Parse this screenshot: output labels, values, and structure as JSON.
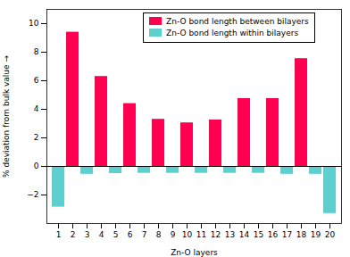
{
  "chart_data": {
    "type": "bar",
    "categories": [
      "1",
      "2",
      "3",
      "4",
      "5",
      "6",
      "7",
      "8",
      "9",
      "10",
      "11",
      "12",
      "13",
      "14",
      "15",
      "16",
      "17",
      "18",
      "19",
      "20"
    ],
    "series": [
      {
        "name": "Zn-O bond length between bilayers",
        "color": "#FF0050",
        "values": [
          null,
          9.4,
          null,
          6.3,
          null,
          4.4,
          null,
          3.3,
          null,
          3.05,
          null,
          3.25,
          null,
          4.75,
          null,
          4.75,
          null,
          7.55,
          null,
          null
        ]
      },
      {
        "name": "Zn-O bond length within bilayers",
        "color": "#5ECECE",
        "values": [
          -2.85,
          null,
          -0.55,
          null,
          -0.5,
          null,
          -0.48,
          null,
          -0.48,
          null,
          -0.48,
          null,
          -0.48,
          null,
          -0.48,
          null,
          -0.55,
          null,
          -0.55,
          -3.3
        ]
      }
    ],
    "xlabel": "Zn-O layers",
    "ylabel": "% deviation from bulk value",
    "ylim": [
      -4,
      11
    ],
    "yticks": [
      -2,
      0,
      2,
      4,
      6,
      8,
      10
    ],
    "legend": "upper center"
  }
}
